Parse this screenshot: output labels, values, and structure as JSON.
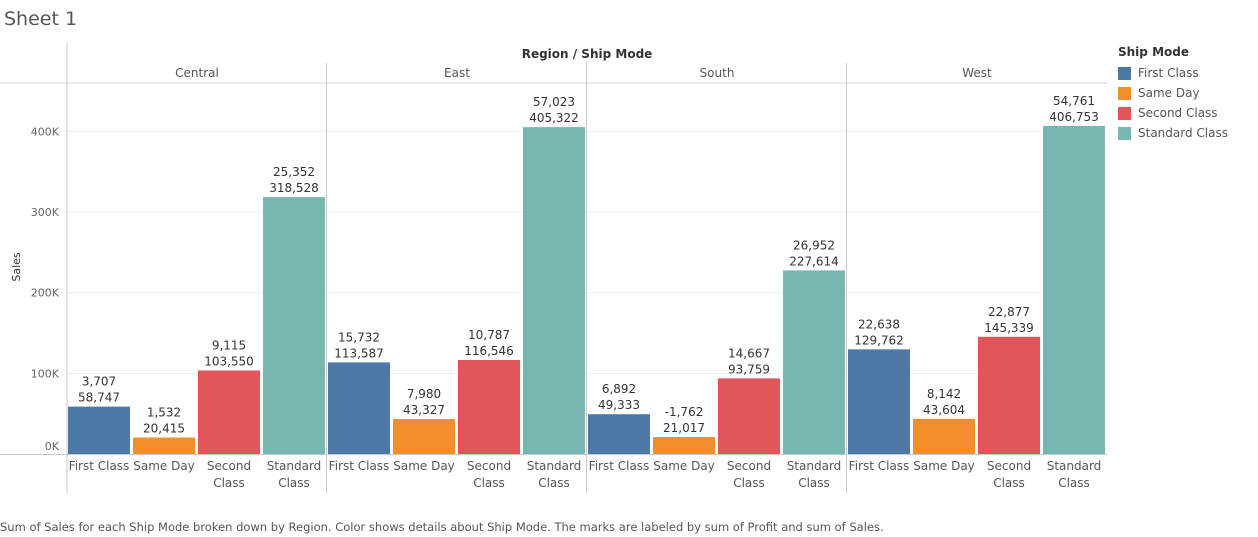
{
  "sheet": {
    "title": "Sheet 1"
  },
  "caption": "Sum of Sales for each Ship Mode broken down by Region.  Color shows details about Ship Mode.  The marks are labeled by sum of Profit and sum of Sales.",
  "legend": {
    "title": "Ship Mode",
    "items": [
      {
        "label": "First Class",
        "color": "#4e79a7"
      },
      {
        "label": "Same Day",
        "color": "#f28e2b"
      },
      {
        "label": "Second Class",
        "color": "#e15759"
      },
      {
        "label": "Standard Class",
        "color": "#76b7b2"
      }
    ]
  },
  "chart_data": {
    "type": "bar",
    "title": "Region  /  Ship Mode",
    "ylabel": "Sales",
    "ylim": [
      0,
      460000
    ],
    "yticks": [
      0,
      100000,
      200000,
      300000,
      400000
    ],
    "ytick_labels": [
      "0K",
      "100K",
      "200K",
      "300K",
      "400K"
    ],
    "grid": true,
    "legend_position": "right",
    "regions": [
      "Central",
      "East",
      "South",
      "West"
    ],
    "categories": [
      "First Class",
      "Same Day",
      "Second Class",
      "Standard Class"
    ],
    "category_labels": [
      [
        "First Class"
      ],
      [
        "Same Day"
      ],
      [
        "Second",
        "Class"
      ],
      [
        "Standard",
        "Class"
      ]
    ],
    "colors": [
      "#4e79a7",
      "#f28e2b",
      "#e15759",
      "#76b7b2"
    ],
    "series": [
      {
        "region": "Central",
        "sales": [
          58747,
          20415,
          103550,
          318528
        ],
        "sales_labels": [
          "58,747",
          "20,415",
          "103,550",
          "318,528"
        ],
        "profit_labels": [
          "3,707",
          "1,532",
          "9,115",
          "25,352"
        ]
      },
      {
        "region": "East",
        "sales": [
          113587,
          43327,
          116546,
          405322
        ],
        "sales_labels": [
          "113,587",
          "43,327",
          "116,546",
          "405,322"
        ],
        "profit_labels": [
          "15,732",
          "7,980",
          "10,787",
          "57,023"
        ]
      },
      {
        "region": "South",
        "sales": [
          49333,
          21017,
          93759,
          227614
        ],
        "sales_labels": [
          "49,333",
          "21,017",
          "93,759",
          "227,614"
        ],
        "profit_labels": [
          "6,892",
          "-1,762",
          "14,667",
          "26,952"
        ]
      },
      {
        "region": "West",
        "sales": [
          129762,
          43604,
          145339,
          406753
        ],
        "sales_labels": [
          "129,762",
          "43,604",
          "145,339",
          "406,753"
        ],
        "profit_labels": [
          "22,638",
          "8,142",
          "22,877",
          "54,761"
        ]
      }
    ]
  }
}
